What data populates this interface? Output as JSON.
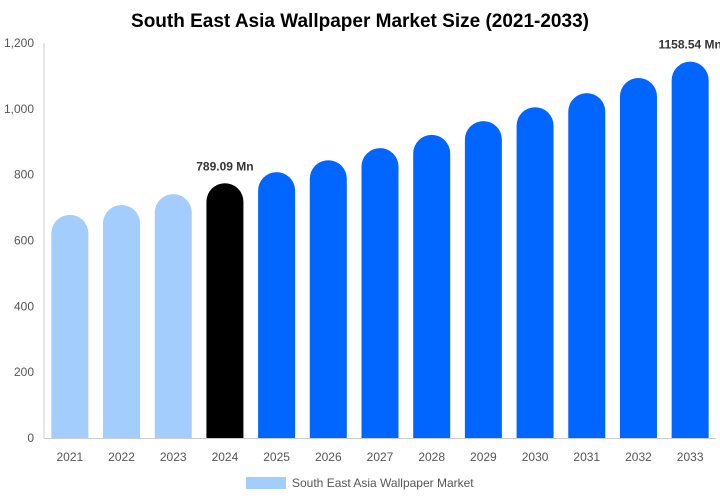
{
  "chart_data": {
    "type": "bar",
    "title": "South East Asia Wallpaper Market Size (2021-2033)",
    "xlabel": "",
    "ylabel": "",
    "ylim": [
      0,
      1200
    ],
    "yticks": [
      0,
      200,
      400,
      600,
      800,
      1000,
      1200
    ],
    "ytick_labels": [
      "0",
      "200",
      "400",
      "600",
      "800",
      "1,000",
      "1,200"
    ],
    "grid": false,
    "categories": [
      "2021",
      "2022",
      "2023",
      "2024",
      "2025",
      "2026",
      "2027",
      "2028",
      "2029",
      "2030",
      "2031",
      "2032",
      "2033"
    ],
    "series": [
      {
        "name": "South East Asia Wallpaper Market",
        "values": [
          693,
          723,
          756,
          789.09,
          823,
          859,
          896,
          936,
          978,
          1020,
          1063,
          1109,
          1158.54
        ]
      }
    ],
    "bar_colors": [
      "#a2cdfc",
      "#a2cdfc",
      "#a2cdfc",
      "#000000",
      "#0066ff",
      "#0066ff",
      "#0066ff",
      "#0066ff",
      "#0066ff",
      "#0066ff",
      "#0066ff",
      "#0066ff",
      "#0066ff"
    ],
    "legend_color": "#a2cdfc",
    "legend_position": "bottom",
    "data_labels": [
      {
        "category": "2024",
        "text": "789.09 Mn"
      },
      {
        "category": "2033",
        "text": "1158.54 Mn"
      }
    ]
  }
}
